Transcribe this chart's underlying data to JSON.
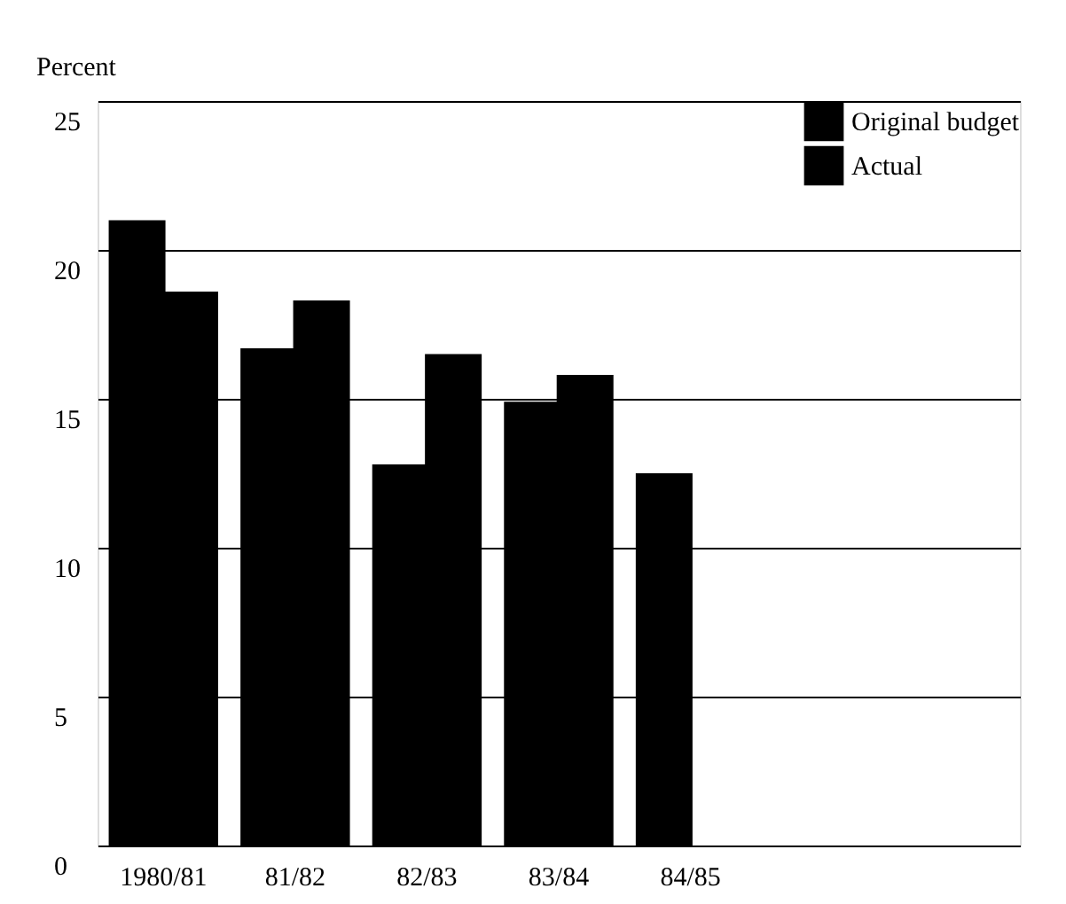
{
  "chart_data": {
    "type": "bar",
    "ylabel": "Percent",
    "categories": [
      "1980/81",
      "81/82",
      "82/83",
      "83/84",
      "84/85"
    ],
    "series": [
      {
        "name": "Original budget",
        "color": "#000000",
        "values": [
          21.0,
          16.7,
          12.8,
          14.9,
          12.5
        ]
      },
      {
        "name": "Actual",
        "color": "#000000",
        "values": [
          18.6,
          18.3,
          16.5,
          15.8,
          null
        ]
      }
    ],
    "ylim": [
      0,
      25
    ],
    "yticks": [
      0,
      5,
      10,
      15,
      20,
      25
    ],
    "grid": "y",
    "legend": "top right"
  }
}
